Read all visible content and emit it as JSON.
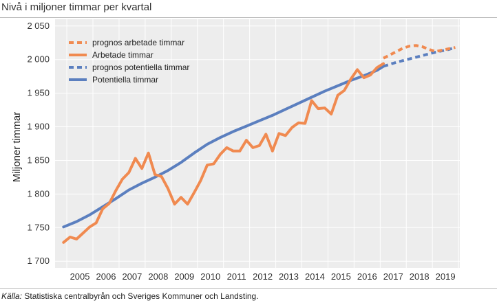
{
  "header": {
    "title": "Nivå i miljoner timmar per kvartal"
  },
  "footer": {
    "source_lead": "Källa:",
    "source_text": " Statistiska centralbyrån och Sveriges Kommuner och Landsting."
  },
  "colors": {
    "arbetade": "#F08A50",
    "potentiella": "#5B7FBF",
    "plot_bg": "#EDEDED",
    "grid": "#ffffff"
  },
  "chart_data": {
    "type": "line",
    "title": "Nivå i miljoner timmar per kvartal",
    "xlabel": "",
    "ylabel": "Miljoner timmar",
    "ylim": [
      1690,
      2060
    ],
    "xlim": [
      2004.55,
      2020.05
    ],
    "yticks": [
      1700,
      1750,
      1800,
      1850,
      1900,
      1950,
      2000,
      2050
    ],
    "ytick_labels": [
      "1 700",
      "1 750",
      "1 800",
      "1 850",
      "1 900",
      "1 950",
      "2 000",
      "2 050"
    ],
    "xtick_labels": [
      "2005",
      "2006",
      "2007",
      "2008",
      "2009",
      "2010",
      "2011",
      "2012",
      "2013",
      "2014",
      "2015",
      "2016",
      "2017",
      "2018",
      "2019"
    ],
    "legend_position": "top-left",
    "series": [
      {
        "name": "prognos arbetade timmar",
        "style": "dashed",
        "color": "#F08A50",
        "x": [
          2017.125,
          2017.375,
          2017.625,
          2017.875,
          2018.125,
          2018.375,
          2018.625,
          2018.875,
          2019.125,
          2019.375,
          2019.625,
          2019.875
        ],
        "y": [
          2002,
          2007,
          2012,
          2017,
          2020,
          2021,
          2019,
          2015,
          2012,
          2014,
          2016,
          2018
        ]
      },
      {
        "name": "Arbetade timmar",
        "style": "solid",
        "color": "#F08A50",
        "x": [
          2004.875,
          2005.125,
          2005.375,
          2005.625,
          2005.875,
          2006.125,
          2006.375,
          2006.625,
          2006.875,
          2007.125,
          2007.375,
          2007.625,
          2007.875,
          2008.125,
          2008.375,
          2008.625,
          2008.875,
          2009.125,
          2009.375,
          2009.625,
          2009.875,
          2010.125,
          2010.375,
          2010.625,
          2010.875,
          2011.125,
          2011.375,
          2011.625,
          2011.875,
          2012.125,
          2012.375,
          2012.625,
          2012.875,
          2013.125,
          2013.375,
          2013.625,
          2013.875,
          2014.125,
          2014.375,
          2014.625,
          2014.875,
          2015.125,
          2015.375,
          2015.625,
          2015.875,
          2016.125,
          2016.375,
          2016.625,
          2016.875,
          2017.125
        ],
        "y": [
          1728,
          1736,
          1733,
          1742,
          1751,
          1757,
          1778,
          1786,
          1805,
          1822,
          1832,
          1853,
          1838,
          1861,
          1829,
          1826,
          1808,
          1785,
          1795,
          1785,
          1802,
          1820,
          1843,
          1845,
          1859,
          1869,
          1864,
          1864,
          1880,
          1869,
          1872,
          1889,
          1864,
          1890,
          1887,
          1899,
          1906,
          1905,
          1939,
          1927,
          1928,
          1919,
          1947,
          1954,
          1971,
          1985,
          1973,
          1977,
          1988,
          1994
        ]
      },
      {
        "name": "prognos potentiella timmar",
        "style": "dashed",
        "color": "#5B7FBF",
        "x": [
          2017.125,
          2017.625,
          2018.125,
          2018.625,
          2019.125,
          2019.625,
          2019.875
        ],
        "y": [
          1990,
          1996,
          2001,
          2006,
          2011,
          2015,
          2018
        ]
      },
      {
        "name": "Potentiella timmar",
        "style": "solid",
        "color": "#5B7FBF",
        "x": [
          2004.875,
          2005.375,
          2005.875,
          2006.375,
          2006.875,
          2007.375,
          2007.875,
          2008.375,
          2008.875,
          2009.375,
          2009.875,
          2010.375,
          2010.875,
          2011.375,
          2011.875,
          2012.375,
          2012.875,
          2013.375,
          2013.875,
          2014.375,
          2014.875,
          2015.375,
          2015.875,
          2016.375,
          2016.875,
          2017.125
        ],
        "y": [
          1751,
          1759,
          1769,
          1781,
          1793,
          1806,
          1816,
          1825,
          1835,
          1847,
          1861,
          1874,
          1884,
          1893,
          1901,
          1909,
          1917,
          1926,
          1935,
          1944,
          1953,
          1961,
          1969,
          1976,
          1984,
          1990
        ]
      }
    ]
  }
}
